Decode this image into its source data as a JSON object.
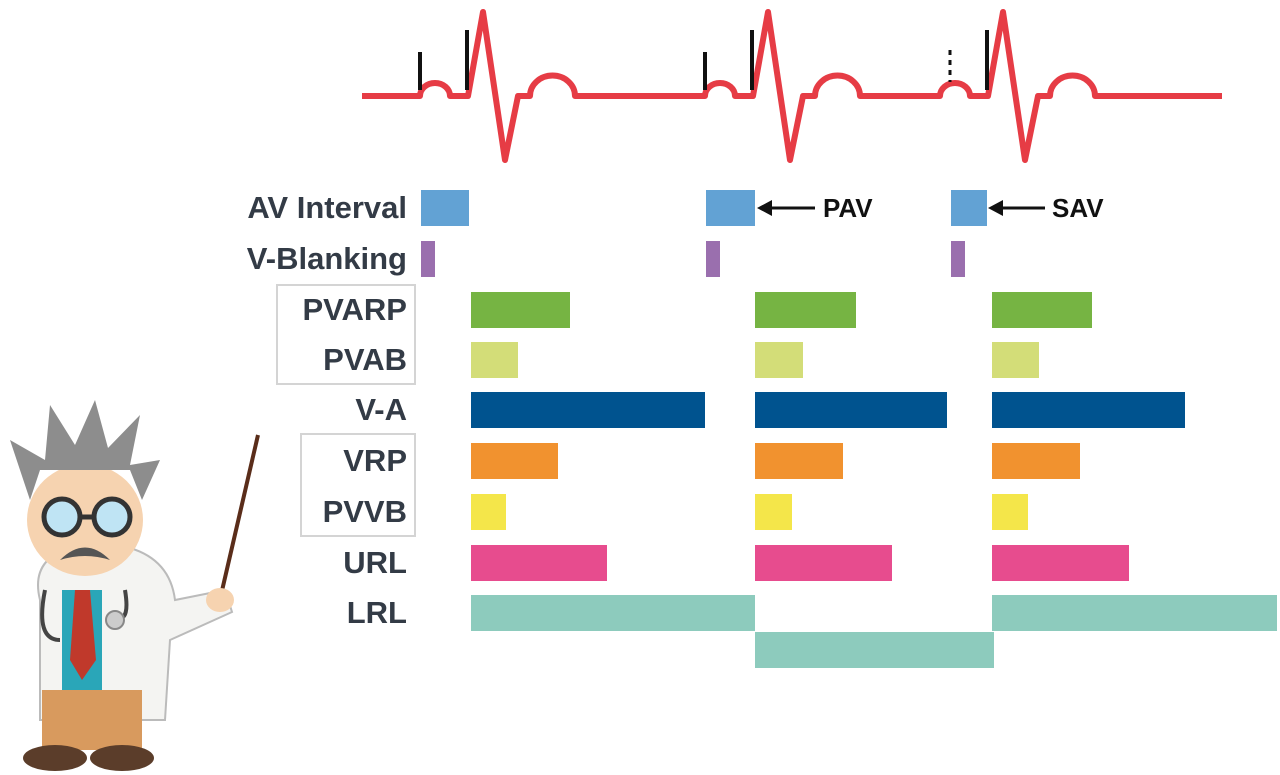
{
  "rows": [
    "AV Interval",
    "V-Blanking",
    "PVARP",
    "PVAB",
    "V-A",
    "VRP",
    "PVVB",
    "URL",
    "LRL"
  ],
  "annotations": [
    "PAV",
    "SAV"
  ]
}
